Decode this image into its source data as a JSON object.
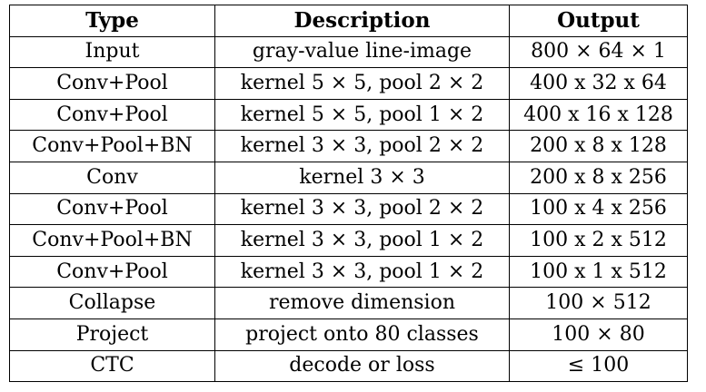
{
  "table": {
    "headers": [
      "Type",
      "Description",
      "Output"
    ],
    "rows": [
      [
        "Input",
        "gray-value line-image",
        "800 × 64 × 1"
      ],
      [
        "Conv+Pool",
        "kernel 5 × 5, pool 2 × 2",
        "400 x 32 x 64"
      ],
      [
        "Conv+Pool",
        "kernel 5 × 5, pool 1 × 2",
        "400 x 16 x 128"
      ],
      [
        "Conv+Pool+BN",
        "kernel 3 × 3, pool 2 × 2",
        "200 x 8 x 128"
      ],
      [
        "Conv",
        "kernel 3 × 3",
        "200 x 8 x 256"
      ],
      [
        "Conv+Pool",
        "kernel 3 × 3, pool 2 × 2",
        "100 x 4 x 256"
      ],
      [
        "Conv+Pool+BN",
        "kernel 3 × 3, pool 1 × 2",
        "100 x 2 x 512"
      ],
      [
        "Conv+Pool",
        "kernel 3 × 3, pool 1 × 2",
        "100 x 1 x 512"
      ],
      [
        "Collapse",
        "remove dimension",
        "100 × 512"
      ],
      [
        "Project",
        "project onto 80 classes",
        "100 × 80"
      ],
      [
        "CTC",
        "decode or loss",
        "≤ 100"
      ]
    ]
  }
}
